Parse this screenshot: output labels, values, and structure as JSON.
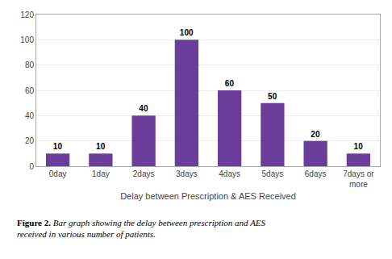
{
  "chart_data": {
    "type": "bar",
    "categories": [
      "0day",
      "1day",
      "2days",
      "3days",
      "4days",
      "5days",
      "6days",
      "7days or\nmore"
    ],
    "values": [
      10,
      10,
      40,
      100,
      60,
      50,
      20,
      10
    ],
    "color": "#6A3D9A",
    "xlabel": "Delay between Prescription & AES Received",
    "ylim": [
      0,
      120
    ],
    "yticks": [
      0,
      20,
      40,
      60,
      80,
      100,
      120
    ],
    "grid": true,
    "data_labels": true,
    "annotations": [
      "Figure 2.",
      "Bar graph showing the delay between prescription and AES\nreceived in various number of patients."
    ]
  }
}
